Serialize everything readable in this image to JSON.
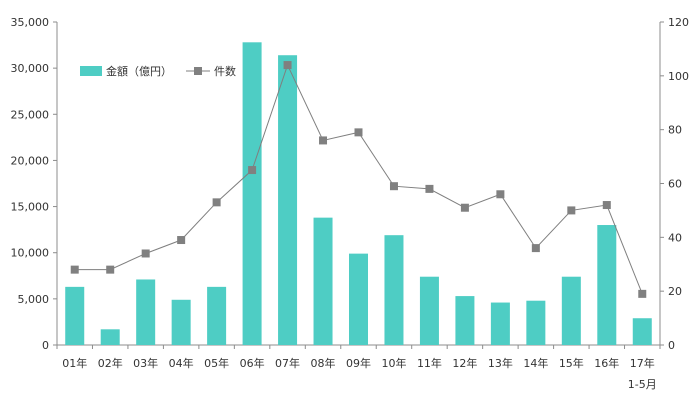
{
  "chart_data": {
    "type": "bar",
    "title": "",
    "xlabel": "",
    "ylabel": "",
    "categories": [
      "01年",
      "02年",
      "03年",
      "04年",
      "05年",
      "06年",
      "07年",
      "08年",
      "09年",
      "10年",
      "11年",
      "12年",
      "13年",
      "14年",
      "15年",
      "16年",
      "17年"
    ],
    "category_sublabels": {
      "17年": "1-5月"
    },
    "series": [
      {
        "name": "金額（億円）",
        "type": "bar",
        "axis": "left",
        "color": "#4ECDC4",
        "values": [
          6300,
          1700,
          7100,
          4900,
          6300,
          32800,
          31400,
          13800,
          9900,
          11900,
          7400,
          5300,
          4600,
          4800,
          7400,
          13000,
          2900
        ]
      },
      {
        "name": "件数",
        "type": "line",
        "axis": "right",
        "color": "#7f7f7f",
        "marker_color": "#808080",
        "values": [
          28,
          28,
          34,
          39,
          53,
          65,
          104,
          76,
          79,
          59,
          58,
          51,
          56,
          36,
          50,
          52,
          19
        ]
      }
    ],
    "y_left": {
      "ylim": [
        0,
        35000
      ],
      "ticks": [
        0,
        5000,
        10000,
        15000,
        20000,
        25000,
        30000,
        35000
      ],
      "tick_labels": [
        "0",
        "5,000",
        "10,000",
        "15,000",
        "20,000",
        "25,000",
        "30,000",
        "35,000"
      ]
    },
    "y_right": {
      "ylim": [
        0,
        120
      ],
      "ticks": [
        0,
        20,
        40,
        60,
        80,
        100,
        120
      ],
      "tick_labels": [
        "0",
        "20",
        "40",
        "60",
        "80",
        "100",
        "120"
      ]
    },
    "grid": false,
    "legend": {
      "position": "top-left",
      "entries": [
        "金額（億円）",
        "件数"
      ]
    }
  }
}
